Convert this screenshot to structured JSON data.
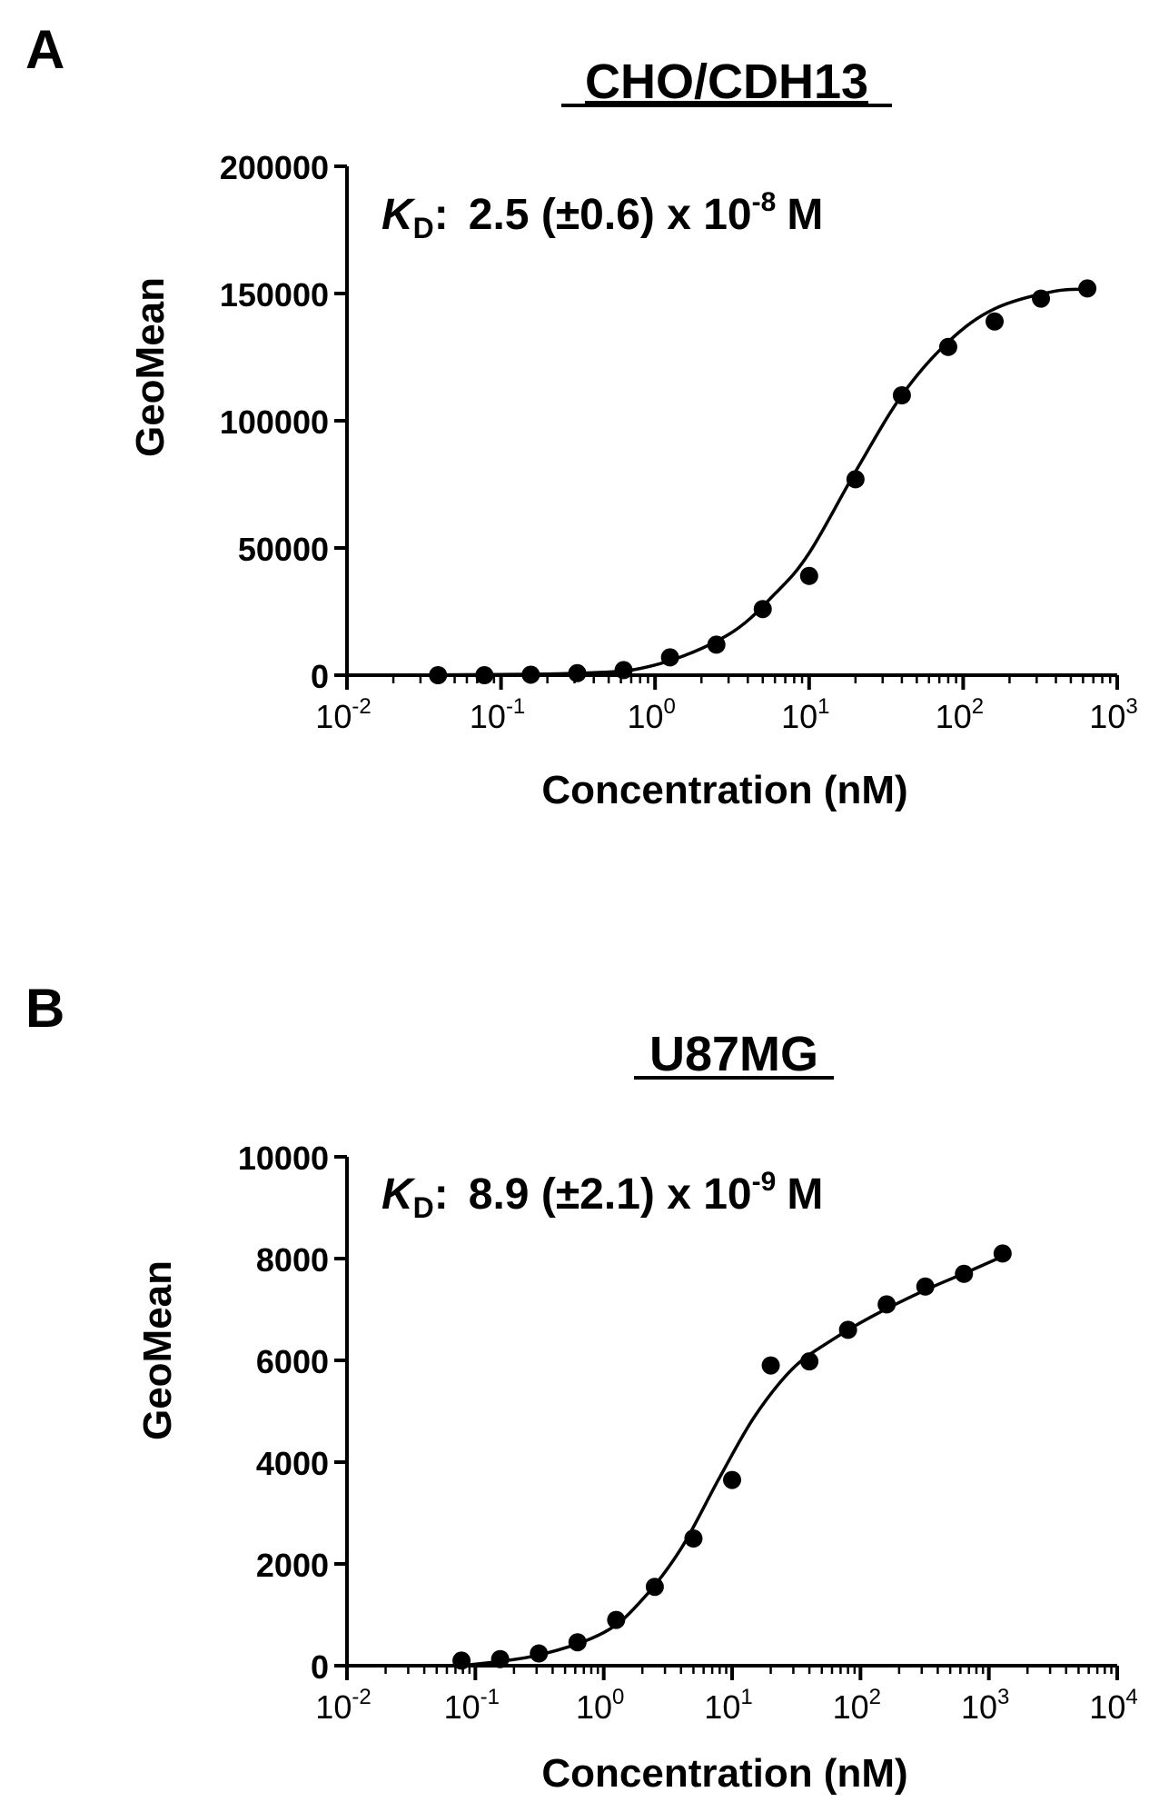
{
  "colors": {
    "ink": "#000000",
    "background": "#ffffff"
  },
  "chart_data": [
    {
      "panel_label": "A",
      "type": "scatter",
      "title": "CHO/CDH13",
      "xlabel": "Concentration (nM)",
      "ylabel": "GeoMean",
      "x_scale": "log",
      "xlim": [
        0.01,
        1000
      ],
      "ylim": [
        0,
        200000
      ],
      "x_tick_exponents": [
        "-2",
        "-1",
        "0",
        "1",
        "2",
        "3"
      ],
      "y_ticks": [
        0,
        50000,
        100000,
        150000,
        200000
      ],
      "y_tick_labels": [
        "0",
        "50000",
        "100000",
        "150000",
        "200000"
      ],
      "annotation": {
        "symbol": "K",
        "subscript": "D",
        "colon": ":",
        "text": "2.5 (±0.6) x 10",
        "exponent": "-8",
        "unit": "M"
      },
      "points": [
        {
          "x": 0.039,
          "y": 0
        },
        {
          "x": 0.078,
          "y": 0
        },
        {
          "x": 0.156,
          "y": 200
        },
        {
          "x": 0.3125,
          "y": 800
        },
        {
          "x": 0.625,
          "y": 2000
        },
        {
          "x": 1.25,
          "y": 7000
        },
        {
          "x": 2.5,
          "y": 12000
        },
        {
          "x": 5,
          "y": 26000
        },
        {
          "x": 10,
          "y": 39000
        },
        {
          "x": 20,
          "y": 77000
        },
        {
          "x": 40,
          "y": 110000
        },
        {
          "x": 80,
          "y": 129000
        },
        {
          "x": 160,
          "y": 139000
        },
        {
          "x": 320,
          "y": 148000
        },
        {
          "x": 640,
          "y": 152000
        }
      ],
      "curve": [
        {
          "x": 0.01,
          "y": 0
        },
        {
          "x": 0.3,
          "y": 700
        },
        {
          "x": 1,
          "y": 4000
        },
        {
          "x": 3,
          "y": 16000
        },
        {
          "x": 6,
          "y": 32000
        },
        {
          "x": 10,
          "y": 48000
        },
        {
          "x": 20,
          "y": 80000
        },
        {
          "x": 40,
          "y": 110000
        },
        {
          "x": 80,
          "y": 131000
        },
        {
          "x": 160,
          "y": 144000
        },
        {
          "x": 400,
          "y": 151000
        },
        {
          "x": 700,
          "y": 151500
        }
      ]
    },
    {
      "panel_label": "B",
      "type": "scatter",
      "title": "U87MG",
      "xlabel": "Concentration (nM)",
      "ylabel": "GeoMean",
      "x_scale": "log",
      "xlim": [
        0.01,
        10000
      ],
      "ylim": [
        0,
        10000
      ],
      "x_tick_exponents": [
        "-2",
        "-1",
        "0",
        "1",
        "2",
        "3",
        "4"
      ],
      "y_ticks": [
        0,
        2000,
        4000,
        6000,
        8000,
        10000
      ],
      "y_tick_labels": [
        "0",
        "2000",
        "4000",
        "6000",
        "8000",
        "10000"
      ],
      "annotation": {
        "symbol": "K",
        "subscript": "D",
        "colon": ":",
        "text": "8.9 (±2.1) x 10",
        "exponent": "-9",
        "unit": "M"
      },
      "points": [
        {
          "x": 0.078,
          "y": 100
        },
        {
          "x": 0.156,
          "y": 130
        },
        {
          "x": 0.3125,
          "y": 240
        },
        {
          "x": 0.625,
          "y": 460
        },
        {
          "x": 1.25,
          "y": 900
        },
        {
          "x": 2.5,
          "y": 1550
        },
        {
          "x": 5,
          "y": 2500
        },
        {
          "x": 10,
          "y": 3650
        },
        {
          "x": 20,
          "y": 5900
        },
        {
          "x": 40,
          "y": 5980
        },
        {
          "x": 80,
          "y": 6600
        },
        {
          "x": 160,
          "y": 7100
        },
        {
          "x": 320,
          "y": 7450
        },
        {
          "x": 640,
          "y": 7700
        },
        {
          "x": 1280,
          "y": 8100
        }
      ],
      "curve": [
        {
          "x": 0.078,
          "y": 0
        },
        {
          "x": 0.3,
          "y": 200
        },
        {
          "x": 1,
          "y": 650
        },
        {
          "x": 2,
          "y": 1300
        },
        {
          "x": 4,
          "y": 2300
        },
        {
          "x": 8,
          "y": 3700
        },
        {
          "x": 15,
          "y": 4900
        },
        {
          "x": 30,
          "y": 5850
        },
        {
          "x": 60,
          "y": 6400
        },
        {
          "x": 120,
          "y": 6850
        },
        {
          "x": 300,
          "y": 7350
        },
        {
          "x": 700,
          "y": 7750
        },
        {
          "x": 1300,
          "y": 8050
        }
      ]
    }
  ]
}
